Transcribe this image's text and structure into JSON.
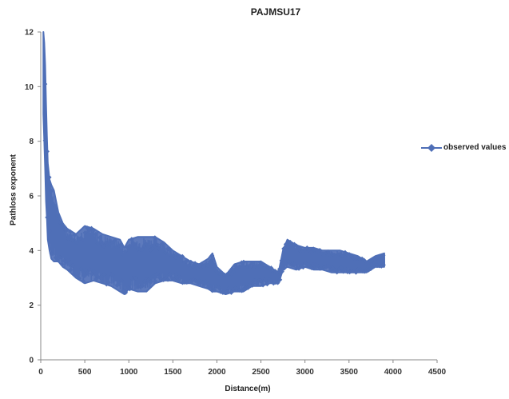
{
  "chart_data": {
    "type": "line",
    "title": "PAJMSU17",
    "xlabel": "Distance(m)",
    "ylabel": "Pathloss exponent",
    "xlim": [
      0,
      4500
    ],
    "ylim": [
      0,
      12
    ],
    "x_ticks": [
      0,
      500,
      1000,
      1500,
      2000,
      2500,
      3000,
      3500,
      4000,
      4500
    ],
    "y_ticks": [
      0,
      2,
      4,
      6,
      8,
      10,
      12
    ],
    "grid": false,
    "legend_position": "right",
    "series": [
      {
        "name": "observed values",
        "color": "#4f6fb7",
        "marker": "diamond",
        "band": {
          "x": [
            30,
            40,
            50,
            60,
            70,
            80,
            100,
            120,
            150,
            200,
            250,
            300,
            400,
            500,
            600,
            700,
            800,
            900,
            950,
            1000,
            1100,
            1200,
            1300,
            1400,
            1500,
            1600,
            1700,
            1800,
            1900,
            1950,
            2000,
            2100,
            2200,
            2300,
            2400,
            2500,
            2600,
            2700,
            2750,
            2800,
            2900,
            3000,
            3100,
            3200,
            3300,
            3400,
            3500,
            3600,
            3700,
            3800,
            3900
          ],
          "high": [
            12.0,
            11.6,
            10.8,
            9.4,
            8.2,
            7.2,
            6.6,
            6.4,
            6.2,
            5.4,
            5.0,
            4.8,
            4.6,
            4.9,
            4.8,
            4.6,
            4.5,
            4.4,
            4.1,
            4.4,
            4.5,
            4.5,
            4.5,
            4.3,
            4.0,
            3.8,
            3.6,
            3.5,
            3.7,
            3.9,
            3.4,
            3.1,
            3.5,
            3.6,
            3.6,
            3.6,
            3.4,
            3.2,
            4.0,
            4.4,
            4.2,
            4.1,
            4.1,
            4.0,
            4.0,
            4.0,
            3.9,
            3.8,
            3.6,
            3.8,
            3.9
          ],
          "low": [
            9.0,
            8.0,
            7.0,
            5.8,
            5.2,
            4.4,
            4.0,
            3.7,
            3.6,
            3.6,
            3.4,
            3.3,
            3.0,
            2.8,
            2.9,
            2.8,
            2.7,
            2.5,
            2.4,
            2.6,
            2.5,
            2.5,
            2.8,
            2.9,
            2.9,
            2.8,
            2.8,
            2.7,
            2.6,
            2.5,
            2.5,
            2.4,
            2.5,
            2.5,
            2.7,
            2.7,
            2.8,
            2.8,
            3.3,
            3.4,
            3.3,
            3.4,
            3.3,
            3.3,
            3.2,
            3.2,
            3.2,
            3.2,
            3.2,
            3.4,
            3.4
          ]
        }
      }
    ]
  }
}
